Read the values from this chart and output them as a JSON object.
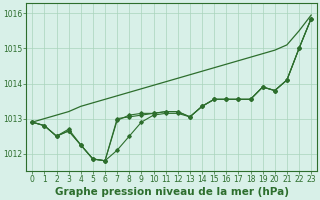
{
  "title": "Graphe pression niveau de la mer (hPa)",
  "background_color": "#d8f0e8",
  "grid_color": "#aad4bc",
  "line_color": "#2d6e2d",
  "xlim": [
    -0.5,
    23.5
  ],
  "ylim": [
    1011.5,
    1016.3
  ],
  "yticks": [
    1012,
    1013,
    1014,
    1015,
    1016
  ],
  "xticks": [
    0,
    1,
    2,
    3,
    4,
    5,
    6,
    7,
    8,
    9,
    10,
    11,
    12,
    13,
    14,
    15,
    16,
    17,
    18,
    19,
    20,
    21,
    22,
    23
  ],
  "envelope": [
    1012.9,
    1013.0,
    1013.1,
    1013.2,
    1013.35,
    1013.45,
    1013.55,
    1013.65,
    1013.75,
    1013.85,
    1013.95,
    1014.05,
    1014.15,
    1014.25,
    1014.35,
    1014.45,
    1014.55,
    1014.65,
    1014.75,
    1014.85,
    1014.95,
    1015.1,
    1015.5,
    1015.95
  ],
  "line1": [
    1012.9,
    1012.8,
    1012.5,
    1012.65,
    1012.25,
    1011.85,
    1011.8,
    1012.1,
    1012.5,
    1012.9,
    1013.1,
    1013.15,
    1013.15,
    1013.05,
    1013.35,
    1013.55,
    1013.55,
    1013.55,
    1013.55,
    1013.9,
    1013.8,
    1014.1,
    1015.0,
    1015.85
  ],
  "line2": [
    1012.9,
    1012.8,
    1012.5,
    1012.65,
    1012.25,
    1011.85,
    1011.8,
    1012.95,
    1013.1,
    1013.15,
    1013.15,
    1013.2,
    1013.2,
    1013.05,
    1013.35,
    1013.55,
    1013.55,
    1013.55,
    1013.55,
    1013.9,
    1013.8,
    1014.1,
    1015.0,
    1015.85
  ],
  "line3": [
    1012.9,
    1012.8,
    1012.5,
    1012.7,
    1012.25,
    1011.85,
    1011.8,
    1013.0,
    1013.05,
    1013.1,
    1013.15,
    1013.2,
    1013.2,
    1013.05,
    1013.35,
    1013.55,
    1013.55,
    1013.55,
    1013.55,
    1013.9,
    1013.8,
    1014.1,
    1015.0,
    1015.85
  ],
  "title_fontsize": 7.5,
  "tick_fontsize": 5.5
}
